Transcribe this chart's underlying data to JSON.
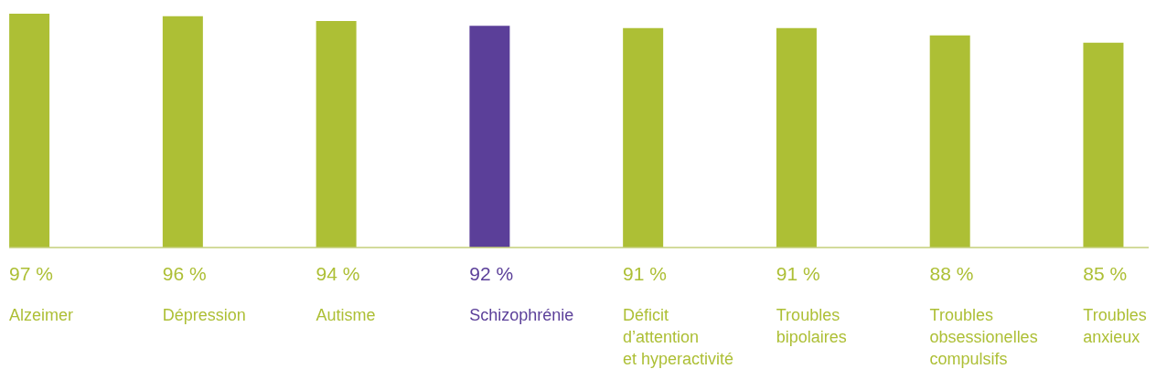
{
  "chart_data": {
    "type": "bar",
    "categories": [
      "Alzeimer",
      "Dépression",
      "Autisme",
      "Schizophrénie",
      "Déficit\nd’attention\net hyperactivité",
      "Troubles\nbipolaires",
      "Troubles\nobsessionelles\ncompulsifs",
      "Troubles\nanxieux"
    ],
    "values": [
      97,
      96,
      94,
      92,
      91,
      91,
      88,
      85
    ],
    "colors": [
      "#adbf35",
      "#adbf35",
      "#adbf35",
      "#5b3f99",
      "#adbf35",
      "#adbf35",
      "#adbf35",
      "#adbf35"
    ],
    "value_labels": [
      "97 %",
      "96 %",
      "94 %",
      "92 %",
      "91 %",
      "91 %",
      "88 %",
      "85 %"
    ],
    "grid": false,
    "legend": false
  }
}
